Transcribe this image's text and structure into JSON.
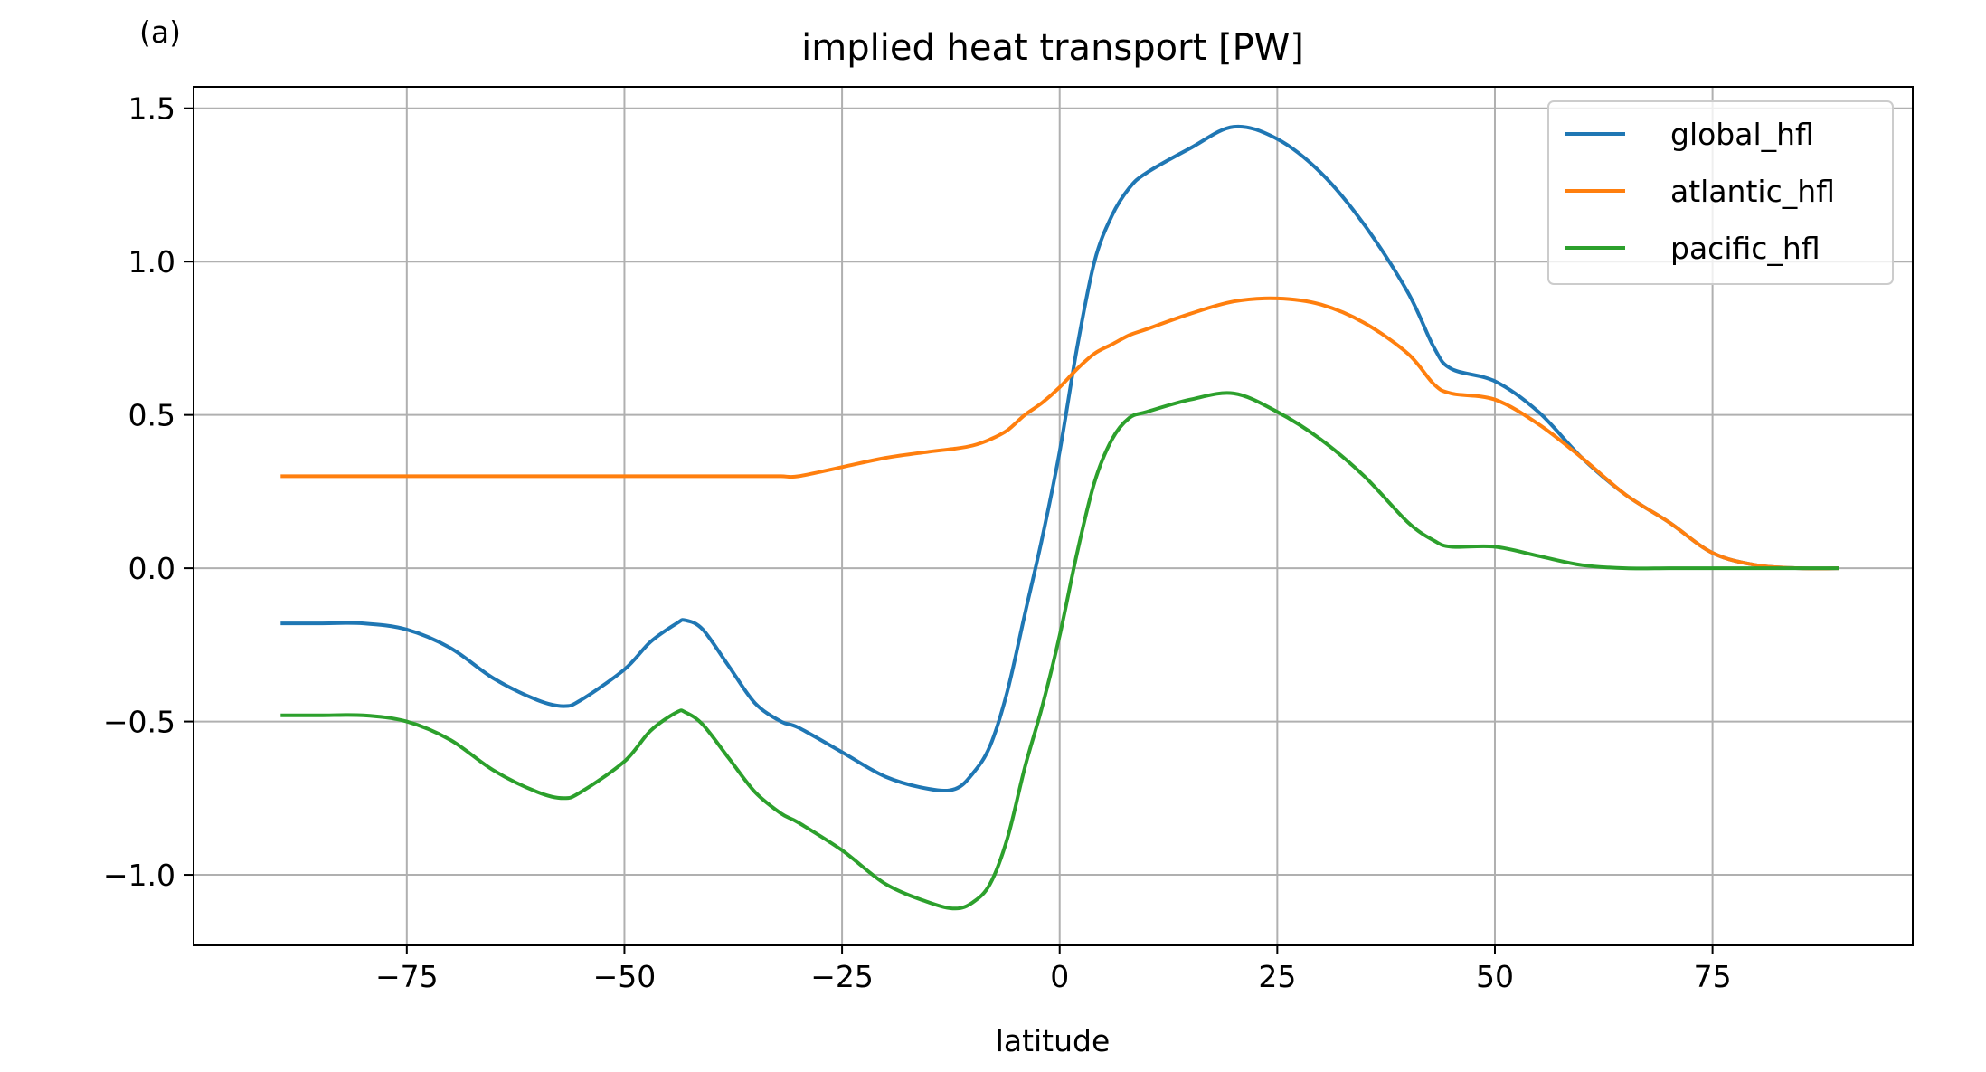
{
  "panel_label": "(a)",
  "colors": {
    "global_hfl": "#1f77b4",
    "atlantic_hfl": "#ff7f0e",
    "pacific_hfl": "#2ca02c",
    "grid": "#b0b0b0",
    "axes": "#000000"
  },
  "chart_data": {
    "type": "line",
    "title": "implied heat transport [PW]",
    "xlabel": "latitude",
    "ylabel": "",
    "xlim": [
      -99.5,
      98
    ],
    "ylim": [
      -1.23,
      1.57
    ],
    "grid": true,
    "legend_position": "top-right",
    "x_ticks": [
      -75,
      -50,
      -25,
      0,
      25,
      50,
      75
    ],
    "x_tick_labels": [
      "−75",
      "−50",
      "−25",
      "0",
      "25",
      "50",
      "75"
    ],
    "y_ticks": [
      -1.0,
      -0.5,
      0.0,
      0.5,
      1.0,
      1.5
    ],
    "y_tick_labels": [
      "−1.0",
      "−0.5",
      "0.0",
      "0.5",
      "1.0",
      "1.5"
    ],
    "x": [
      -89.5,
      -85,
      -80,
      -75,
      -70,
      -65,
      -60,
      -57,
      -55,
      -50,
      -47,
      -44,
      -43,
      -41,
      -38,
      -35,
      -32,
      -30,
      -25,
      -20,
      -15,
      -12,
      -10,
      -8,
      -6,
      -4,
      -2,
      0,
      2,
      4,
      6,
      8,
      10,
      15,
      20,
      25,
      30,
      35,
      40,
      43,
      45,
      50,
      55,
      60,
      65,
      70,
      75,
      80,
      85,
      89.5
    ],
    "series": [
      {
        "name": "global_hfl",
        "values": [
          -0.18,
          -0.18,
          -0.18,
          -0.2,
          -0.26,
          -0.36,
          -0.43,
          -0.45,
          -0.43,
          -0.33,
          -0.24,
          -0.18,
          -0.17,
          -0.2,
          -0.32,
          -0.44,
          -0.5,
          -0.52,
          -0.6,
          -0.68,
          -0.72,
          -0.72,
          -0.67,
          -0.58,
          -0.4,
          -0.15,
          0.1,
          0.38,
          0.72,
          1.0,
          1.15,
          1.24,
          1.29,
          1.37,
          1.44,
          1.4,
          1.29,
          1.12,
          0.9,
          0.72,
          0.65,
          0.61,
          0.51,
          0.36,
          0.24,
          0.15,
          0.05,
          0.01,
          0.0,
          0.0
        ]
      },
      {
        "name": "atlantic_hfl",
        "values": [
          0.3,
          0.3,
          0.3,
          0.3,
          0.3,
          0.3,
          0.3,
          0.3,
          0.3,
          0.3,
          0.3,
          0.3,
          0.3,
          0.3,
          0.3,
          0.3,
          0.3,
          0.3,
          0.33,
          0.36,
          0.38,
          0.39,
          0.4,
          0.42,
          0.45,
          0.5,
          0.54,
          0.59,
          0.65,
          0.7,
          0.73,
          0.76,
          0.78,
          0.83,
          0.87,
          0.88,
          0.86,
          0.8,
          0.7,
          0.6,
          0.57,
          0.55,
          0.47,
          0.36,
          0.24,
          0.15,
          0.05,
          0.01,
          0.0,
          0.0
        ]
      },
      {
        "name": "pacific_hfl",
        "values": [
          -0.48,
          -0.48,
          -0.48,
          -0.5,
          -0.56,
          -0.66,
          -0.73,
          -0.75,
          -0.73,
          -0.63,
          -0.53,
          -0.47,
          -0.47,
          -0.51,
          -0.62,
          -0.73,
          -0.8,
          -0.83,
          -0.92,
          -1.03,
          -1.09,
          -1.11,
          -1.09,
          -1.03,
          -0.88,
          -0.65,
          -0.45,
          -0.22,
          0.05,
          0.28,
          0.42,
          0.49,
          0.51,
          0.55,
          0.57,
          0.51,
          0.42,
          0.3,
          0.15,
          0.09,
          0.07,
          0.07,
          0.04,
          0.01,
          0.0,
          0.0,
          0.0,
          0.0,
          0.0,
          0.0
        ]
      }
    ]
  }
}
